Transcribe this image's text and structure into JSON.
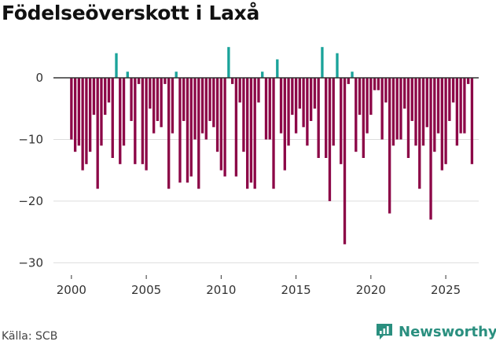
{
  "title": "Födelseöverskott i Laxå",
  "source": "Källa: SCB",
  "brand": "Newsworthy",
  "colors": {
    "positive": "#1aa39a",
    "negative": "#8c0747",
    "grid": "#dddddd",
    "zero": "#333333",
    "brand": "#2a8f7f"
  },
  "chart_data": {
    "type": "bar",
    "title": "Födelseöverskott i Laxå",
    "xlabel": "",
    "ylabel": "",
    "ylim": [
      -32,
      6
    ],
    "xlim": [
      1998.8,
      2027.2
    ],
    "x_ticks": [
      2000,
      2005,
      2010,
      2015,
      2020,
      2025
    ],
    "x_tick_labels": [
      "2000",
      "2005",
      "2010",
      "2015",
      "2020",
      "2025"
    ],
    "y_ticks": [
      0,
      -10,
      -20,
      -30
    ],
    "y_tick_labels": [
      "0",
      "−10",
      "−20",
      "−30"
    ],
    "frequency": "quarterly",
    "series": [
      {
        "name": "Födelseöverskott",
        "start": 2000,
        "values": [
          -10,
          -12,
          -11,
          -15,
          -14,
          -12,
          -6,
          -18,
          -11,
          -6,
          -4,
          -13,
          4,
          -14,
          -11,
          1,
          -7,
          -14,
          -1,
          -14,
          -15,
          -5,
          -9,
          -7,
          -8,
          -1,
          -18,
          -9,
          1,
          -17,
          -7,
          -17,
          -16,
          -10,
          -18,
          -9,
          -10,
          -7,
          -8,
          -12,
          -15,
          -16,
          5,
          -1,
          -16,
          -4,
          -12,
          -18,
          -17,
          -18,
          -4,
          1,
          -10,
          -10,
          -18,
          3,
          -9,
          -15,
          -11,
          -6,
          -9,
          -5,
          -8,
          -11,
          -7,
          -5,
          -13,
          5,
          -13,
          -20,
          -11,
          4,
          -14,
          -27,
          -1,
          1,
          -12,
          -6,
          -13,
          -9,
          -6,
          -2,
          -2,
          -10,
          -4,
          -22,
          -11,
          -10,
          -10,
          -5,
          -13,
          -7,
          -11,
          -18,
          -11,
          -8,
          -23,
          -12,
          -9,
          -15,
          -14,
          -7,
          -4,
          -11,
          -9,
          -9,
          -1,
          -14
        ]
      }
    ]
  }
}
